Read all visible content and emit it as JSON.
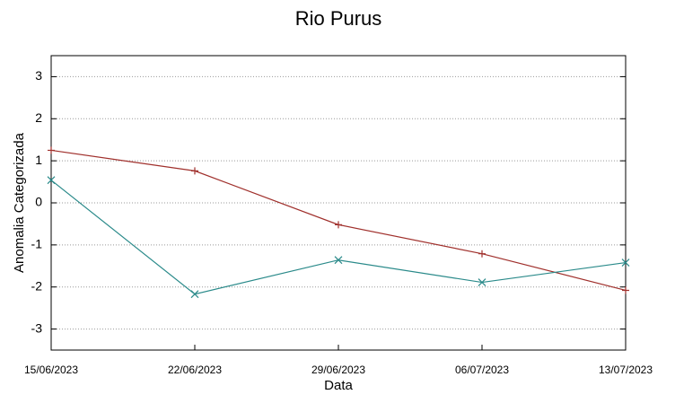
{
  "chart_data": {
    "type": "line",
    "title": "Rio Purus",
    "x_label": "Data",
    "y_label": "Anomalia Categorizada",
    "categories": [
      "15/06/2023",
      "22/06/2023",
      "29/06/2023",
      "06/07/2023",
      "13/07/2023"
    ],
    "series": [
      {
        "color": "#a0302c",
        "marker": "+",
        "values": [
          1.25,
          0.76,
          -0.52,
          -1.21,
          -2.08
        ]
      },
      {
        "color": "#2a8a8a",
        "marker": "x",
        "values": [
          0.54,
          -2.17,
          -1.36,
          -1.89,
          -1.42
        ]
      }
    ],
    "ylim": [
      -3.5,
      3.5
    ],
    "yticks": [
      -3,
      -2,
      -1,
      0,
      1,
      2,
      3
    ],
    "grid": true
  }
}
